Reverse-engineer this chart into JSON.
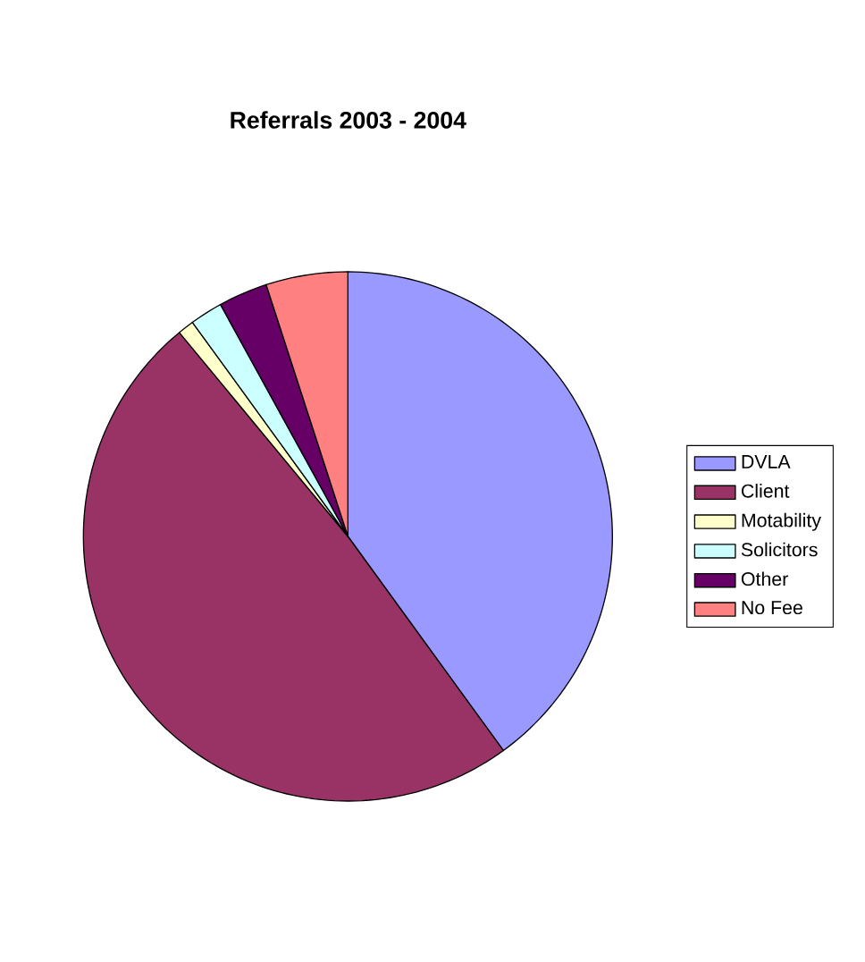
{
  "chart_data": {
    "type": "pie",
    "title": "Referrals 2003 - 2004",
    "categories": [
      "DVLA",
      "Client",
      "Motability",
      "Solicitors",
      "Other",
      "No Fee"
    ],
    "values": [
      40,
      49,
      1,
      2,
      3,
      5
    ],
    "colors": [
      "#9999ff",
      "#993366",
      "#ffffcc",
      "#ccffff",
      "#660066",
      "#ff8080"
    ],
    "legend": "right"
  }
}
